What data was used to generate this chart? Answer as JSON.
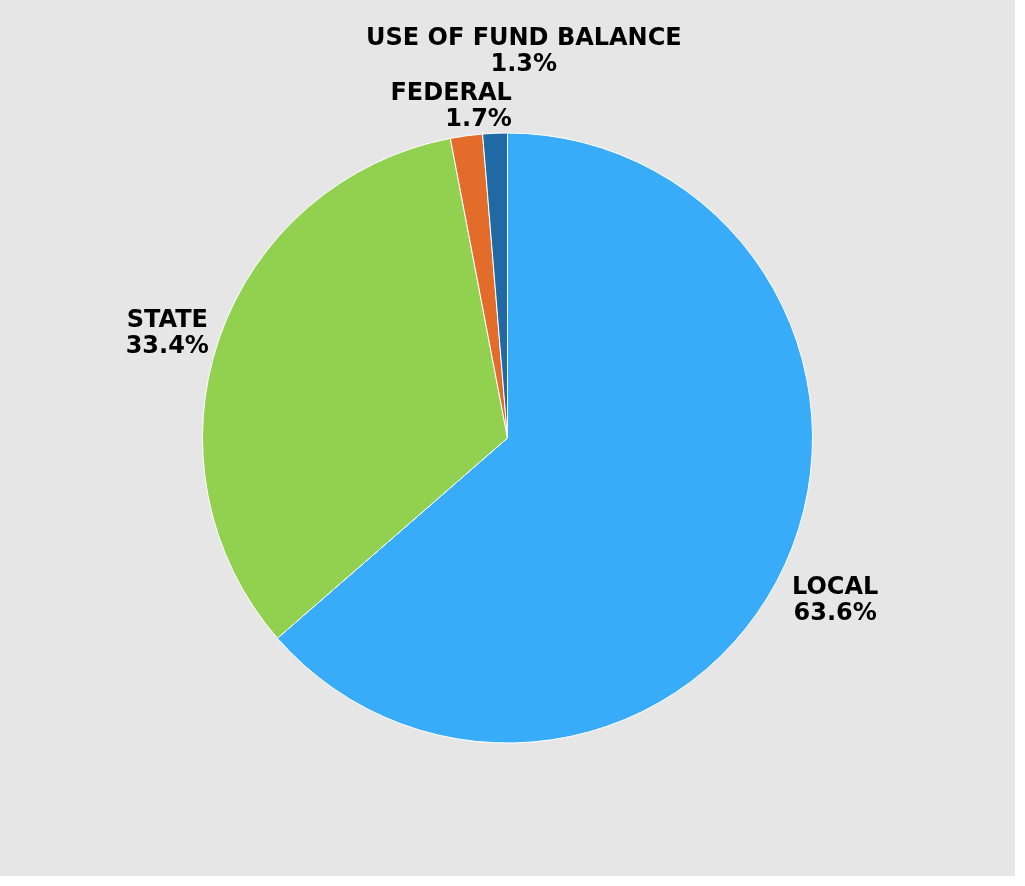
{
  "chart_data": {
    "type": "pie",
    "categories": [
      "LOCAL",
      "STATE",
      "FEDERAL",
      "USE OF FUND BALANCE"
    ],
    "values": [
      63.6,
      33.4,
      1.7,
      1.3
    ],
    "colors": [
      "#38acf8",
      "#92d050",
      "#e46c2a",
      "#1f6aa5"
    ],
    "value_labels": [
      "63.6%",
      "33.4%",
      "1.7%",
      "1.3%"
    ],
    "legend": false
  }
}
